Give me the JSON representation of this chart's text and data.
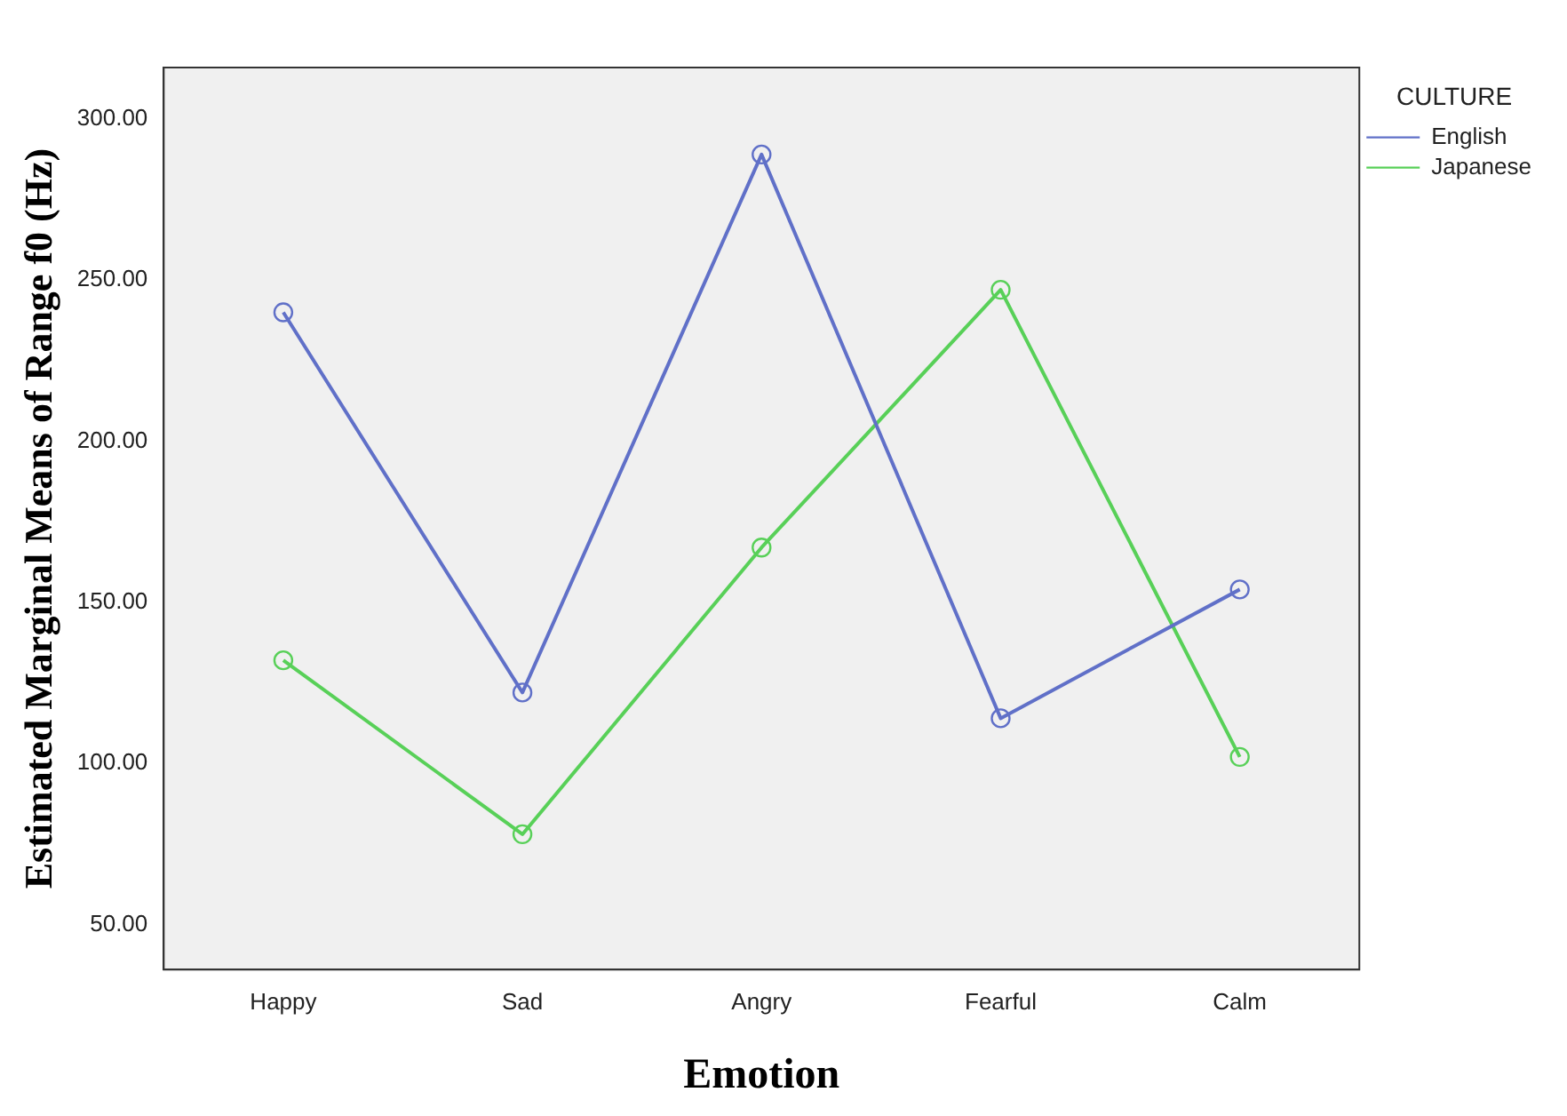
{
  "chart_data": {
    "type": "line",
    "xlabel": "Emotion",
    "ylabel": "Estimated Marginal Means of Range f0 (Hz)",
    "legend_title": "CULTURE",
    "categories": [
      "Happy",
      "Sad",
      "Angry",
      "Fearful",
      "Calm"
    ],
    "series": [
      {
        "name": "English",
        "color": "#6070c8",
        "values": [
          240,
          122,
          289,
          114,
          154
        ]
      },
      {
        "name": "Japanese",
        "color": "#58d058",
        "values": [
          132,
          78,
          167,
          247,
          102
        ]
      }
    ],
    "ylim": [
      36,
      316
    ],
    "yticks": [
      {
        "value": 50,
        "label": "50.00"
      },
      {
        "value": 100,
        "label": "100.00"
      },
      {
        "value": 150,
        "label": "150.00"
      },
      {
        "value": 200,
        "label": "200.00"
      },
      {
        "value": 250,
        "label": "250.00"
      },
      {
        "value": 300,
        "label": "300.00"
      }
    ],
    "grid": false,
    "legend": "top right",
    "marker": "circle",
    "line_style": "solid"
  }
}
